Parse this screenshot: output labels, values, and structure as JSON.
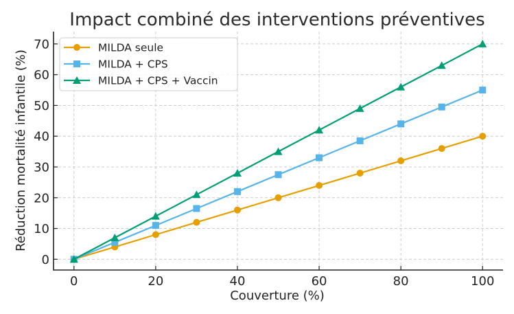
{
  "chart_data": {
    "type": "line",
    "title": "Impact combiné des interventions préventives",
    "xlabel": "Couverture (%)",
    "ylabel": "Réduction mortalité infantile (%)",
    "x": [
      0,
      10,
      20,
      30,
      40,
      50,
      60,
      70,
      80,
      90,
      100
    ],
    "xlim": [
      -5,
      105
    ],
    "ylim": [
      -3.5,
      74
    ],
    "xticks": [
      0,
      20,
      40,
      60,
      80,
      100
    ],
    "yticks": [
      0,
      10,
      20,
      30,
      40,
      50,
      60,
      70
    ],
    "xtick_labels": [
      "0",
      "20",
      "40",
      "60",
      "80",
      "100"
    ],
    "ytick_labels": [
      "0",
      "10",
      "20",
      "30",
      "40",
      "50",
      "60",
      "70"
    ],
    "grid": true,
    "legend_position": "top-left",
    "series": [
      {
        "name": "MILDA seule",
        "color": "#E69F00",
        "marker": "circle",
        "values": [
          0,
          4,
          8,
          12,
          16,
          20,
          24,
          28,
          32,
          36,
          40
        ]
      },
      {
        "name": "MILDA + CPS",
        "color": "#56B4E9",
        "marker": "square",
        "values": [
          0,
          5.5,
          11,
          16.5,
          22,
          27.5,
          33,
          38.5,
          44,
          49.5,
          55
        ]
      },
      {
        "name": "MILDA + CPS + Vaccin",
        "color": "#009E73",
        "marker": "triangle",
        "values": [
          0,
          7,
          14,
          21,
          28,
          35,
          42,
          49,
          56,
          63,
          70
        ]
      }
    ]
  }
}
